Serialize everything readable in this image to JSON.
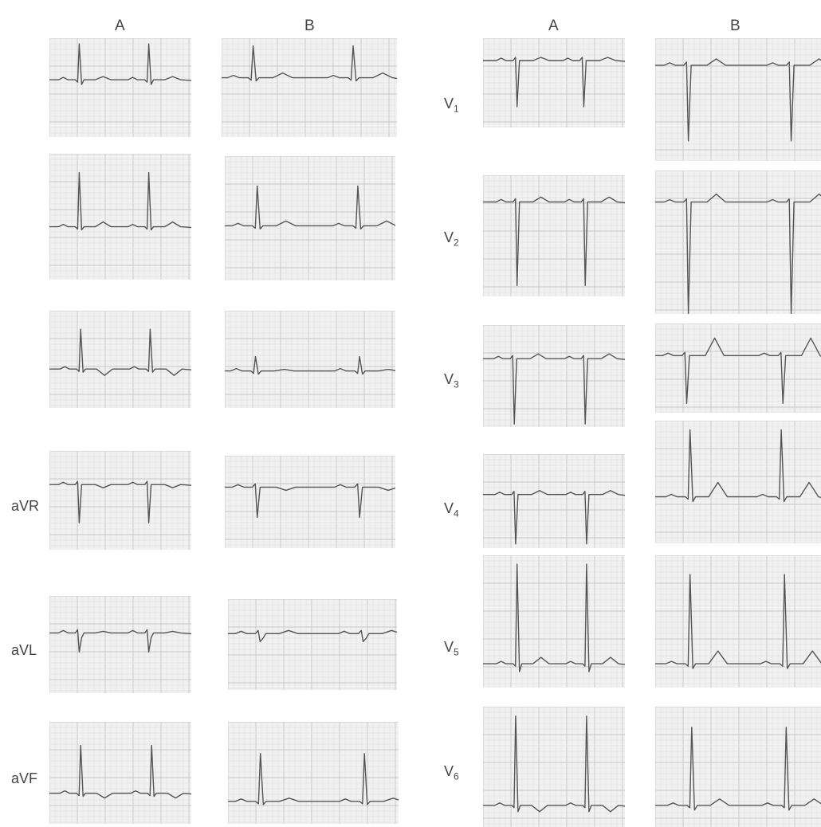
{
  "limb_headers": {
    "left_a": "A",
    "left_b": "B",
    "right_a": "A",
    "right_b": "B"
  },
  "limb_leads": [
    {
      "id": "I",
      "label": ""
    },
    {
      "id": "II",
      "label": ""
    },
    {
      "id": "III",
      "label": ""
    },
    {
      "id": "aVR",
      "label": "aVR"
    },
    {
      "id": "aVL",
      "label": "aVL"
    },
    {
      "id": "aVF",
      "label": "aVF"
    }
  ],
  "chest_leads": [
    {
      "id": "V1",
      "main": "V",
      "sub": "1"
    },
    {
      "id": "V2",
      "main": "V",
      "sub": "2"
    },
    {
      "id": "V3",
      "main": "V",
      "sub": "3"
    },
    {
      "id": "V4",
      "main": "V",
      "sub": "4"
    },
    {
      "id": "V5",
      "main": "V",
      "sub": "5"
    },
    {
      "id": "V6",
      "main": "V",
      "sub": "6"
    }
  ],
  "colors": {
    "paper": "#f1f1f1",
    "grid_minor": "#dcdcdc",
    "grid_major": "#c6c6c6",
    "trace": "#555555",
    "label": "#444444"
  }
}
